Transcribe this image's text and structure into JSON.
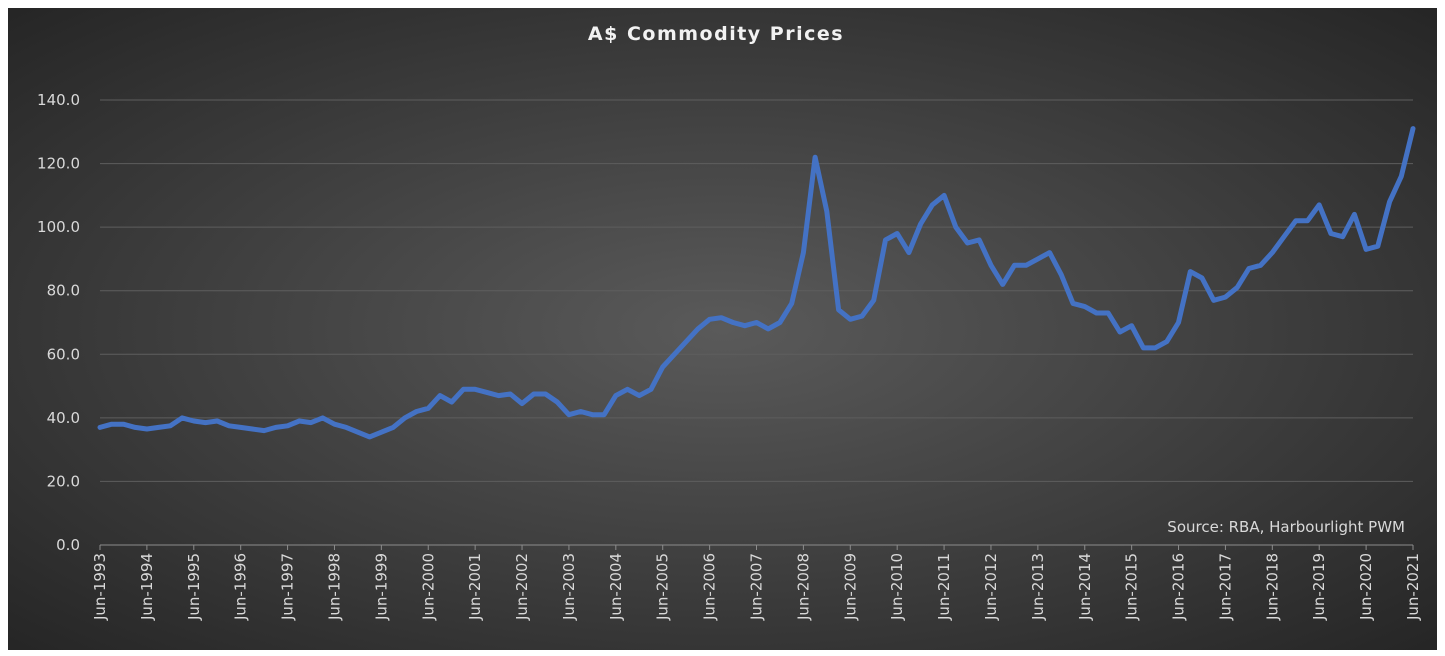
{
  "chart_data": {
    "type": "line",
    "title": "A$ Commodity Prices",
    "annotation": "Source: RBA, Harbourlight PWM",
    "categories": [
      "Jun-1993",
      null,
      null,
      null,
      "Jun-1994",
      null,
      null,
      null,
      "Jun-1995",
      null,
      null,
      null,
      "Jun-1996",
      null,
      null,
      null,
      "Jun-1997",
      null,
      null,
      null,
      "Jun-1998",
      null,
      null,
      null,
      "Jun-1999",
      null,
      null,
      null,
      "Jun-2000",
      null,
      null,
      null,
      "Jun-2001",
      null,
      null,
      null,
      "Jun-2002",
      null,
      null,
      null,
      "Jun-2003",
      null,
      null,
      null,
      "Jun-2004",
      null,
      null,
      null,
      "Jun-2005",
      null,
      null,
      null,
      "Jun-2006",
      null,
      null,
      null,
      "Jun-2007",
      null,
      null,
      null,
      "Jun-2008",
      null,
      null,
      null,
      "Jun-2009",
      null,
      null,
      null,
      "Jun-2010",
      null,
      null,
      null,
      "Jun-2011",
      null,
      null,
      null,
      "Jun-2012",
      null,
      null,
      null,
      "Jun-2013",
      null,
      null,
      null,
      "Jun-2014",
      null,
      null,
      null,
      "Jun-2015",
      null,
      null,
      null,
      "Jun-2016",
      null,
      null,
      null,
      "Jun-2017",
      null,
      null,
      null,
      "Jun-2018",
      null,
      null,
      null,
      "Jun-2019",
      null,
      null,
      null,
      "Jun-2020",
      null,
      null,
      null,
      "Jun-2021"
    ],
    "series": [
      {
        "name": "A$ Commodity Prices",
        "color": "#4472c4",
        "values": [
          37,
          38,
          38,
          37,
          36.5,
          37,
          37.5,
          40,
          39,
          38.5,
          39,
          37.5,
          37,
          36.5,
          36,
          37,
          37.5,
          39,
          38.5,
          40,
          38,
          37,
          35.5,
          34,
          35.5,
          37,
          40,
          42,
          43,
          47,
          45,
          49,
          49,
          48,
          47,
          47.5,
          44.5,
          47.5,
          47.5,
          45,
          41,
          42,
          41,
          41,
          47,
          49,
          47,
          49,
          56,
          60,
          64,
          68,
          71,
          71.5,
          70,
          69,
          70,
          68,
          70,
          76,
          92,
          122,
          105,
          74,
          71,
          72,
          77,
          96,
          98,
          92,
          101,
          107,
          110,
          100,
          95,
          96,
          88,
          82,
          88,
          88,
          90,
          92,
          85,
          76,
          75,
          73,
          73,
          67,
          69,
          62,
          62,
          64,
          70,
          86,
          84,
          77,
          78,
          81,
          87,
          88,
          92,
          97,
          102,
          102,
          107,
          98,
          97,
          104,
          93,
          94,
          108,
          116,
          131
        ]
      }
    ],
    "ylim": [
      0,
      140
    ],
    "yticks": [
      {
        "value": 0,
        "label": "0.0"
      },
      {
        "value": 20,
        "label": "20.0"
      },
      {
        "value": 40,
        "label": "40.0"
      },
      {
        "value": 60,
        "label": "60.0"
      },
      {
        "value": 80,
        "label": "80.0"
      },
      {
        "value": 100,
        "label": "100.0"
      },
      {
        "value": 120,
        "label": "120.0"
      },
      {
        "value": 140,
        "label": "140.0"
      }
    ],
    "grid": true
  }
}
